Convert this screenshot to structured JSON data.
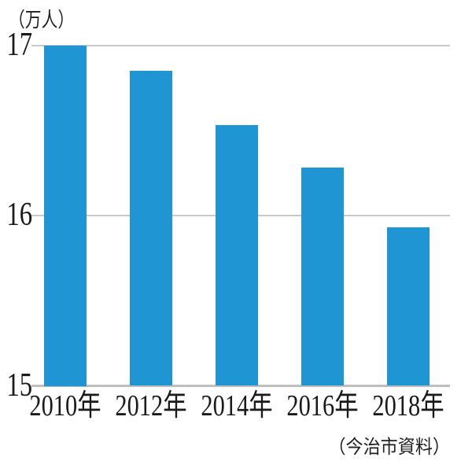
{
  "chart_data": {
    "type": "bar",
    "ylabel": "（万人）",
    "source": "（今治市資料）",
    "categories": [
      "2010年",
      "2012年",
      "2014年",
      "2016年",
      "2018年"
    ],
    "values": [
      17.0,
      16.85,
      16.53,
      16.28,
      15.93
    ],
    "ylim": [
      15,
      17
    ],
    "yticks": [
      17,
      16,
      15
    ],
    "grid": "horizontal gridlines at integer ticks, behind bars",
    "legend": "none",
    "colors": {
      "bar": "#2095d3",
      "gridline": "#c9c9c9",
      "axis_line": "#bfbfbf",
      "text": "#1a1a1a",
      "background": "#ffffff"
    }
  }
}
